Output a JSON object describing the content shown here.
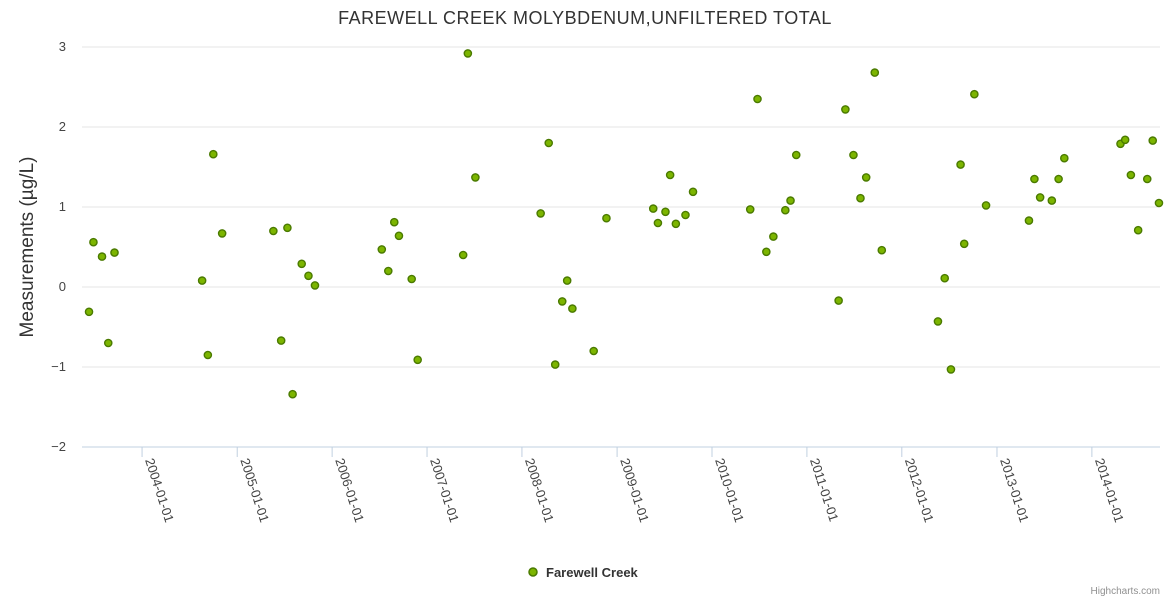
{
  "chart_data": {
    "type": "scatter",
    "title": "FAREWELL CREEK MOLYBDENUM,UNFILTERED TOTAL",
    "ylabel": "Measurements (µg/L)",
    "xlabel": "",
    "ylim": [
      -2,
      3
    ],
    "xlim": [
      "2003-05-15",
      "2014-09-20"
    ],
    "y_ticks": [
      "3",
      "2",
      "1",
      "0",
      "−1",
      "−2"
    ],
    "y_tick_values": [
      3,
      2,
      1,
      0,
      -1,
      -2
    ],
    "x_ticks": [
      "2004-01-01",
      "2005-01-01",
      "2006-01-01",
      "2007-01-01",
      "2008-01-01",
      "2009-01-01",
      "2010-01-01",
      "2011-01-01",
      "2012-01-01",
      "2013-01-01",
      "2014-01-01"
    ],
    "grid": "horizontal",
    "legend_position": "bottom-center",
    "series": [
      {
        "name": "Farewell Creek",
        "color": "#7cb500",
        "stroke": "#4a7a00",
        "points": [
          {
            "x": "2003-06-11",
            "y": -0.31
          },
          {
            "x": "2003-06-28",
            "y": 0.56
          },
          {
            "x": "2003-07-31",
            "y": 0.38
          },
          {
            "x": "2003-08-24",
            "y": -0.7
          },
          {
            "x": "2003-09-17",
            "y": 0.43
          },
          {
            "x": "2004-08-19",
            "y": 0.08
          },
          {
            "x": "2004-09-10",
            "y": -0.85
          },
          {
            "x": "2004-10-01",
            "y": 1.66
          },
          {
            "x": "2004-11-04",
            "y": 0.67
          },
          {
            "x": "2005-05-20",
            "y": 0.7
          },
          {
            "x": "2005-06-19",
            "y": -0.67
          },
          {
            "x": "2005-07-13",
            "y": 0.74
          },
          {
            "x": "2005-08-02",
            "y": -1.34
          },
          {
            "x": "2005-09-06",
            "y": 0.29
          },
          {
            "x": "2005-10-02",
            "y": 0.14
          },
          {
            "x": "2005-10-27",
            "y": 0.02
          },
          {
            "x": "2006-07-11",
            "y": 0.47
          },
          {
            "x": "2006-08-05",
            "y": 0.2
          },
          {
            "x": "2006-08-28",
            "y": 0.81
          },
          {
            "x": "2006-09-15",
            "y": 0.64
          },
          {
            "x": "2006-11-03",
            "y": 0.1
          },
          {
            "x": "2006-11-26",
            "y": -0.91
          },
          {
            "x": "2007-05-20",
            "y": 0.4
          },
          {
            "x": "2007-06-07",
            "y": 2.92
          },
          {
            "x": "2007-07-06",
            "y": 1.37
          },
          {
            "x": "2008-03-13",
            "y": 0.92
          },
          {
            "x": "2008-04-13",
            "y": 1.8
          },
          {
            "x": "2008-05-08",
            "y": -0.97
          },
          {
            "x": "2008-06-04",
            "y": -0.18
          },
          {
            "x": "2008-06-23",
            "y": 0.08
          },
          {
            "x": "2008-07-13",
            "y": -0.27
          },
          {
            "x": "2008-10-03",
            "y": -0.8
          },
          {
            "x": "2008-11-21",
            "y": 0.86
          },
          {
            "x": "2009-05-20",
            "y": 0.98
          },
          {
            "x": "2009-06-07",
            "y": 0.8
          },
          {
            "x": "2009-07-06",
            "y": 0.94
          },
          {
            "x": "2009-07-24",
            "y": 1.4
          },
          {
            "x": "2009-08-15",
            "y": 0.79
          },
          {
            "x": "2009-09-21",
            "y": 0.9
          },
          {
            "x": "2009-10-20",
            "y": 1.19
          },
          {
            "x": "2010-05-28",
            "y": 0.97
          },
          {
            "x": "2010-06-25",
            "y": 2.35
          },
          {
            "x": "2010-07-29",
            "y": 0.44
          },
          {
            "x": "2010-08-25",
            "y": 0.63
          },
          {
            "x": "2010-10-10",
            "y": 0.96
          },
          {
            "x": "2010-10-30",
            "y": 1.08
          },
          {
            "x": "2010-11-21",
            "y": 1.65
          },
          {
            "x": "2011-05-03",
            "y": -0.17
          },
          {
            "x": "2011-05-29",
            "y": 2.22
          },
          {
            "x": "2011-06-29",
            "y": 1.65
          },
          {
            "x": "2011-07-26",
            "y": 1.11
          },
          {
            "x": "2011-08-17",
            "y": 1.37
          },
          {
            "x": "2011-09-19",
            "y": 2.68
          },
          {
            "x": "2011-10-16",
            "y": 0.46
          },
          {
            "x": "2012-05-19",
            "y": -0.43
          },
          {
            "x": "2012-06-14",
            "y": 0.11
          },
          {
            "x": "2012-07-08",
            "y": -1.03
          },
          {
            "x": "2012-08-14",
            "y": 1.53
          },
          {
            "x": "2012-08-28",
            "y": 0.54
          },
          {
            "x": "2012-10-06",
            "y": 2.41
          },
          {
            "x": "2012-11-20",
            "y": 1.02
          },
          {
            "x": "2013-05-04",
            "y": 0.83
          },
          {
            "x": "2013-05-25",
            "y": 1.35
          },
          {
            "x": "2013-06-16",
            "y": 1.12
          },
          {
            "x": "2013-07-31",
            "y": 1.08
          },
          {
            "x": "2013-08-26",
            "y": 1.35
          },
          {
            "x": "2013-09-17",
            "y": 1.61
          },
          {
            "x": "2014-04-21",
            "y": 1.79
          },
          {
            "x": "2014-05-09",
            "y": 1.84
          },
          {
            "x": "2014-05-31",
            "y": 1.4
          },
          {
            "x": "2014-06-28",
            "y": 0.71
          },
          {
            "x": "2014-08-02",
            "y": 1.35
          },
          {
            "x": "2014-08-23",
            "y": 1.83
          },
          {
            "x": "2014-09-16",
            "y": 1.05
          }
        ]
      }
    ]
  },
  "legend": {
    "label": "Farewell Creek"
  },
  "credits": "Highcharts.com"
}
